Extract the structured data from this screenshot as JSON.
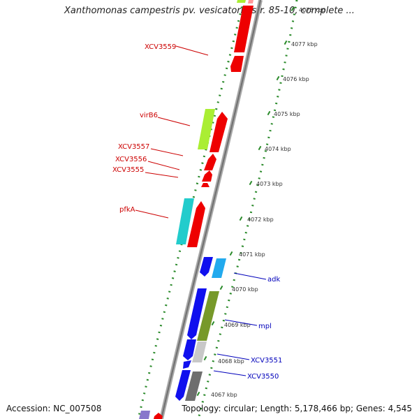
{
  "title": "Xanthomonas campestris pv. vesicatoria str. 85-10, complete ...",
  "footer": {
    "accession": "Accession: NC_007508",
    "topology": "Topology: circular",
    "length": "Length: 5,178,466 bp",
    "genes": "Genes: 4,545"
  },
  "colors": {
    "backbone": "#9a9a9a",
    "tick": "#2a8a2a",
    "ruler_label": "#333333",
    "forward_label": "#cc0000",
    "reverse_label": "#0000bb",
    "red": "#ee0000",
    "lime": "#aaee33",
    "cyan": "#22cccc",
    "blue": "#1010ee",
    "skyblue": "#22aaee",
    "olive": "#77992a",
    "silver": "#c8c8c8",
    "gray": "#6e6e6e",
    "purple": "#8877cc"
  },
  "kbp_labels": [
    "4078 kbp",
    "4077 kbp",
    "4076 kbp",
    "4075 kbp",
    "4074 kbp",
    "4073 kbp",
    "4072 kbp",
    "4071 kbp",
    "4070 kbp",
    "4069 kbp",
    "4068 kbp",
    "4067 kbp"
  ],
  "forward_labels": [
    "XCV3559",
    "virB6",
    "XCV3557",
    "XCV3556",
    "XCV3555",
    "pfkA"
  ],
  "reverse_labels": [
    "adk",
    "mpl",
    "XCV3551",
    "XCV3550"
  ]
}
